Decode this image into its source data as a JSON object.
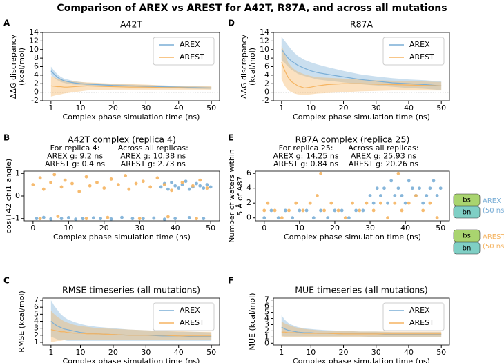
{
  "title": "Comparison of AREX vs AREST for A42T, R87A, and across all mutations",
  "chart_data": [
    {
      "type": "line",
      "label": "A",
      "title": "A42T",
      "xlabel": "Complex phase simulation time (ns)",
      "ylabel": [
        "ΔΔG discrepancy",
        "(kcal/mol)"
      ],
      "x": [
        1,
        2,
        3,
        4,
        5,
        6,
        8,
        10,
        12,
        15,
        20,
        25,
        30,
        35,
        40,
        45,
        50
      ],
      "series": [
        {
          "name": "AREX",
          "color": "#7aaed6",
          "values": [
            5.0,
            4.2,
            3.5,
            3.0,
            2.7,
            2.5,
            2.2,
            2.0,
            1.9,
            1.8,
            1.6,
            1.5,
            1.4,
            1.3,
            1.2,
            1.1,
            1.0
          ],
          "lower": [
            4.0,
            3.4,
            2.8,
            2.4,
            2.2,
            2.0,
            1.8,
            1.7,
            1.6,
            1.5,
            1.3,
            1.2,
            1.1,
            1.0,
            0.9,
            0.8,
            0.7
          ],
          "upper": [
            6.0,
            5.0,
            4.2,
            3.6,
            3.2,
            3.0,
            2.6,
            2.4,
            2.2,
            2.1,
            1.9,
            1.8,
            1.7,
            1.6,
            1.5,
            1.4,
            1.3
          ]
        },
        {
          "name": "AREST",
          "color": "#f5b461",
          "values": [
            1.5,
            1.4,
            1.3,
            1.3,
            1.2,
            1.2,
            1.3,
            1.4,
            1.5,
            1.4,
            1.3,
            1.2,
            1.2,
            1.1,
            1.1,
            1.0,
            1.0
          ],
          "lower": [
            -1.0,
            -0.8,
            -0.6,
            -0.5,
            -0.3,
            -0.2,
            0.0,
            0.2,
            0.4,
            0.5,
            0.6,
            0.6,
            0.6,
            0.6,
            0.6,
            0.6,
            0.6
          ],
          "upper": [
            3.8,
            3.5,
            3.2,
            3.0,
            2.8,
            2.6,
            2.5,
            2.4,
            2.3,
            2.2,
            2.0,
            1.9,
            1.8,
            1.6,
            1.5,
            1.5,
            1.4
          ]
        }
      ],
      "xlim": [
        -1.5,
        52.5
      ],
      "ylim": [
        -2,
        14
      ],
      "xticks": [
        1,
        10,
        20,
        30,
        40,
        50
      ],
      "yticks": [
        -2,
        0,
        2,
        4,
        6,
        8,
        10,
        12,
        14
      ],
      "hline": 0,
      "legend": "upper right"
    },
    {
      "type": "line",
      "label": "D",
      "title": "R87A",
      "xlabel": "Complex phase simulation time (ns)",
      "ylabel": [
        "ΔΔG discrepancy",
        "(kcal/mol)"
      ],
      "x": [
        1,
        2,
        3,
        4,
        5,
        6,
        8,
        10,
        12,
        15,
        20,
        25,
        30,
        35,
        40,
        45,
        50
      ],
      "series": [
        {
          "name": "AREX",
          "color": "#7aaed6",
          "values": [
            10.0,
            9.0,
            8.0,
            7.3,
            6.8,
            6.3,
            5.6,
            5.0,
            4.6,
            4.2,
            3.6,
            3.0,
            2.6,
            2.2,
            2.0,
            1.8,
            1.5
          ],
          "lower": [
            7.5,
            6.8,
            6.0,
            5.3,
            4.8,
            4.3,
            3.8,
            3.4,
            3.0,
            2.7,
            2.3,
            1.9,
            1.6,
            1.3,
            1.0,
            0.8,
            0.5
          ],
          "upper": [
            13.0,
            12.0,
            11.0,
            10.0,
            9.2,
            8.5,
            7.6,
            7.0,
            6.5,
            5.9,
            5.0,
            4.2,
            3.7,
            3.3,
            3.0,
            2.8,
            2.5
          ]
        },
        {
          "name": "AREST",
          "color": "#f5b461",
          "values": [
            7.0,
            5.0,
            3.5,
            2.5,
            2.0,
            1.5,
            1.0,
            1.2,
            1.5,
            1.8,
            2.0,
            2.0,
            1.9,
            1.8,
            1.7,
            1.6,
            1.5
          ],
          "lower": [
            3.0,
            1.5,
            0.5,
            0.0,
            -0.3,
            -0.5,
            -0.6,
            -0.5,
            -0.3,
            -0.2,
            0.0,
            0.2,
            0.3,
            0.4,
            0.4,
            0.4,
            0.4
          ],
          "upper": [
            11.0,
            9.0,
            7.0,
            6.0,
            5.3,
            4.8,
            4.2,
            3.8,
            3.5,
            3.4,
            3.2,
            3.0,
            2.8,
            2.7,
            2.6,
            2.5,
            2.4
          ]
        }
      ],
      "xlim": [
        -1.5,
        52.5
      ],
      "ylim": [
        -2,
        14
      ],
      "xticks": [
        1,
        10,
        20,
        30,
        40,
        50
      ],
      "yticks": [
        -2,
        0,
        2,
        4,
        6,
        8,
        10,
        12,
        14
      ],
      "hline": 0,
      "legend": "upper right"
    },
    {
      "type": "scatter",
      "label": "B",
      "title": "A42T complex (replica 4)",
      "xlabel": "Complex phase simulation time (ns)",
      "ylabel": [
        "cos(T42 chi1 angle)"
      ],
      "notes": [
        [
          "For replica 4:",
          "AREX g: 9.2 ns",
          "AREST g: 0.4 ns"
        ],
        [
          "Across all replicas:",
          "AREX g: 10.38 ns",
          "AREST g: 2.73 ns"
        ]
      ],
      "series": [
        {
          "name": "AREX",
          "color": "#7aaed6",
          "x": [
            1,
            3,
            5,
            8,
            10,
            12,
            14,
            17,
            19,
            22,
            25,
            28,
            31,
            34,
            37,
            40,
            44,
            48,
            36,
            37,
            38,
            39,
            40,
            41,
            42,
            43,
            44,
            45,
            46,
            47,
            48,
            49,
            50
          ],
          "y": [
            -1.0,
            -0.95,
            -1.02,
            -1.0,
            -0.96,
            -1.03,
            -1.0,
            -0.97,
            -1.0,
            -1.02,
            -0.95,
            -1.0,
            -1.0,
            -0.98,
            -1.03,
            -1.0,
            -0.96,
            -1.0,
            0.4,
            0.55,
            0.3,
            0.6,
            0.45,
            0.35,
            0.5,
            0.65,
            0.3,
            0.4,
            0.55,
            0.45,
            0.35,
            0.5,
            0.4
          ]
        },
        {
          "name": "AREST",
          "color": "#f5b461",
          "x": [
            0,
            2,
            3,
            5,
            6,
            8,
            9,
            11,
            13,
            15,
            16,
            18,
            20,
            22,
            24,
            26,
            27,
            29,
            31,
            33,
            35,
            37,
            39,
            42,
            45,
            47,
            49,
            2,
            7,
            15,
            21,
            30,
            38,
            46
          ],
          "y": [
            0.5,
            0.8,
            0.3,
            0.6,
            0.95,
            0.4,
            0.7,
            0.55,
            0.2,
            0.85,
            0.45,
            0.6,
            0.35,
            0.75,
            0.5,
            0.9,
            0.3,
            0.55,
            0.65,
            0.4,
            0.8,
            0.5,
            0.25,
            0.6,
            0.45,
            0.7,
            0.35,
            -1.0,
            -0.9,
            -1.0,
            -0.95,
            -1.0,
            -0.92,
            -1.0
          ]
        }
      ],
      "xlim": [
        -2.5,
        52.5
      ],
      "ylim": [
        -1.1,
        1.1
      ],
      "xticks": [
        0,
        10,
        20,
        30,
        40,
        50
      ],
      "yticks": [
        -1,
        0,
        1
      ]
    },
    {
      "type": "scatter",
      "label": "E",
      "title": "R87A complex (replica 25)",
      "xlabel": "Complex phase simulation time (ns)",
      "ylabel": [
        "Number of waters within",
        "5 Å of A87"
      ],
      "notes": [
        [
          "For replica 25:",
          "AREX g: 14.25 ns",
          "AREST g: 0.84 ns"
        ],
        [
          "Across all replicas:",
          "AREX g: 25.93 ns",
          "AREST g: 20.26 ns"
        ]
      ],
      "series": [
        {
          "name": "AREX",
          "color": "#7aaed6",
          "x": [
            0,
            2,
            4,
            6,
            8,
            10,
            12,
            14,
            16,
            18,
            20,
            22,
            24,
            26,
            28,
            30,
            31,
            32,
            33,
            34,
            35,
            36,
            37,
            38,
            39,
            40,
            41,
            42,
            43,
            44,
            45,
            46,
            47,
            48,
            49,
            50
          ],
          "y": [
            0,
            1,
            0,
            1,
            0,
            1,
            1,
            0,
            1,
            0,
            1,
            1,
            0,
            1,
            1,
            3,
            2,
            4,
            3,
            4,
            2,
            5,
            3,
            4,
            3,
            2,
            5,
            4,
            3,
            4,
            2,
            3,
            4,
            5,
            3,
            4
          ]
        },
        {
          "name": "AREST",
          "color": "#f5b461",
          "x": [
            0,
            1,
            3,
            5,
            7,
            9,
            11,
            13,
            15,
            16,
            17,
            19,
            21,
            23,
            25,
            27,
            29,
            31,
            33,
            35,
            37,
            38,
            39,
            41,
            43,
            45,
            47,
            49
          ],
          "y": [
            1,
            2,
            1,
            0,
            1,
            2,
            1,
            2,
            3,
            6,
            1,
            2,
            1,
            0,
            2,
            1,
            2,
            1,
            2,
            0,
            2,
            6,
            1,
            2,
            3,
            1,
            2,
            0
          ]
        }
      ],
      "xlim": [
        -2.5,
        52.5
      ],
      "ylim": [
        -0.4,
        6.3
      ],
      "xticks": [
        0,
        10,
        20,
        30,
        40,
        50
      ],
      "yticks": [
        0,
        2,
        4,
        6
      ],
      "side_legend": [
        {
          "top": "bs",
          "bottom": "bn",
          "name": "AREX",
          "note": "(50 ns)"
        },
        {
          "top": "bs",
          "bottom": "bn",
          "name": "AREST",
          "note": "(50 ns)"
        }
      ]
    },
    {
      "type": "line",
      "label": "C",
      "title": "RMSE timeseries (all mutations)",
      "xlabel": "Complex phase simulation time (ns)",
      "ylabel": [
        "RMSE (kcal/mol)"
      ],
      "x": [
        1,
        2,
        3,
        4,
        5,
        6,
        8,
        10,
        12,
        15,
        20,
        25,
        30,
        35,
        40,
        45,
        50
      ],
      "series": [
        {
          "name": "AREX",
          "color": "#7aaed6",
          "values": [
            4.0,
            3.6,
            3.3,
            3.1,
            2.9,
            2.8,
            2.6,
            2.4,
            2.3,
            2.2,
            2.1,
            2.0,
            2.0,
            1.9,
            1.9,
            1.8,
            1.8
          ],
          "lower": [
            1.8,
            1.6,
            1.4,
            1.3,
            1.3,
            1.2,
            1.2,
            1.2,
            1.2,
            1.2,
            1.2,
            1.2,
            1.2,
            1.2,
            1.2,
            1.2,
            1.2
          ],
          "upper": [
            7.0,
            6.2,
            5.6,
            5.0,
            4.6,
            4.3,
            3.9,
            3.6,
            3.4,
            3.2,
            3.0,
            2.8,
            2.7,
            2.6,
            2.5,
            2.5,
            2.4
          ]
        },
        {
          "name": "AREST",
          "color": "#f5b461",
          "values": [
            2.8,
            2.7,
            2.6,
            2.5,
            2.5,
            2.4,
            2.3,
            2.3,
            2.2,
            2.2,
            2.1,
            2.0,
            2.0,
            2.0,
            1.9,
            1.9,
            1.9
          ],
          "lower": [
            1.0,
            1.1,
            1.2,
            1.2,
            1.3,
            1.3,
            1.3,
            1.3,
            1.3,
            1.3,
            1.3,
            1.3,
            1.3,
            1.3,
            1.3,
            1.3,
            1.3
          ],
          "upper": [
            5.5,
            5.0,
            4.6,
            4.3,
            4.0,
            3.8,
            3.5,
            3.3,
            3.2,
            3.0,
            2.9,
            2.8,
            2.7,
            2.6,
            2.6,
            2.5,
            2.5
          ]
        }
      ],
      "xlim": [
        -1.5,
        52.5
      ],
      "ylim": [
        0.6,
        7.3
      ],
      "xticks": [
        1,
        10,
        20,
        30,
        40,
        50
      ],
      "yticks": [
        1,
        2,
        3,
        4,
        5,
        6,
        7
      ],
      "legend": "upper right"
    },
    {
      "type": "line",
      "label": "F",
      "title": "MUE timeseries (all mutations)",
      "xlabel": "Complex phase simulation time (ns)",
      "ylabel": [
        "MUE (kcal/mol)"
      ],
      "x": [
        1,
        2,
        3,
        4,
        5,
        6,
        8,
        10,
        12,
        15,
        20,
        25,
        30,
        35,
        40,
        45,
        50
      ],
      "series": [
        {
          "name": "AREX",
          "color": "#7aaed6",
          "values": [
            2.6,
            2.3,
            2.1,
            2.0,
            1.9,
            1.8,
            1.7,
            1.7,
            1.6,
            1.6,
            1.5,
            1.5,
            1.5,
            1.4,
            1.4,
            1.4,
            1.4
          ],
          "lower": [
            1.2,
            1.1,
            1.1,
            1.1,
            1.1,
            1.1,
            1.1,
            1.1,
            1.1,
            1.1,
            1.1,
            1.1,
            1.0,
            1.0,
            1.0,
            1.0,
            1.0
          ],
          "upper": [
            4.5,
            3.8,
            3.3,
            3.0,
            2.8,
            2.6,
            2.4,
            2.3,
            2.2,
            2.1,
            2.0,
            1.9,
            1.9,
            1.8,
            1.8,
            1.8,
            1.8
          ]
        },
        {
          "name": "AREST",
          "color": "#f5b461",
          "values": [
            1.8,
            1.8,
            1.7,
            1.7,
            1.7,
            1.7,
            1.6,
            1.6,
            1.6,
            1.6,
            1.5,
            1.5,
            1.5,
            1.5,
            1.5,
            1.5,
            1.5
          ],
          "lower": [
            0.9,
            1.0,
            1.0,
            1.0,
            1.0,
            1.0,
            1.0,
            1.0,
            1.0,
            1.0,
            1.0,
            1.0,
            1.0,
            1.0,
            1.0,
            1.0,
            1.0
          ],
          "upper": [
            3.5,
            3.2,
            3.0,
            2.8,
            2.6,
            2.5,
            2.3,
            2.2,
            2.1,
            2.0,
            2.0,
            1.9,
            1.9,
            1.9,
            1.9,
            1.9,
            1.9
          ]
        }
      ],
      "xlim": [
        -1.5,
        52.5
      ],
      "ylim": [
        -0.3,
        7.3
      ],
      "xticks": [
        1,
        10,
        20,
        30,
        40,
        50
      ],
      "yticks": [
        0,
        1,
        2,
        3,
        4,
        5,
        6,
        7
      ],
      "legend": "upper right"
    }
  ]
}
